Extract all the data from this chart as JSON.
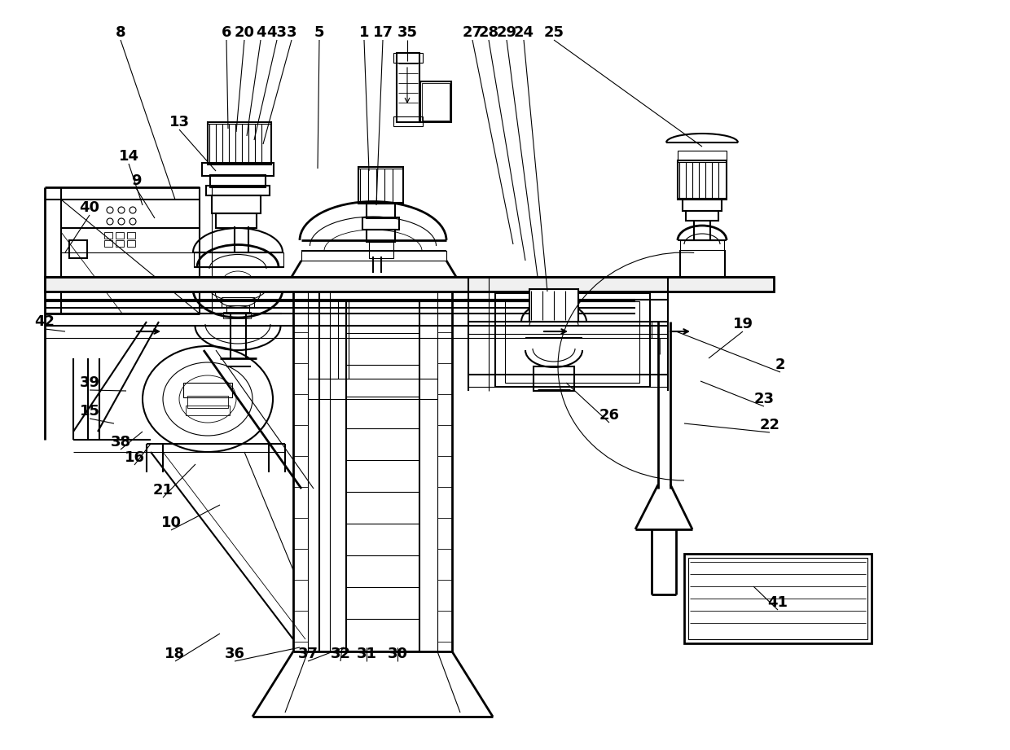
{
  "bg_color": "#ffffff",
  "figsize": [
    12.4,
    9.21
  ],
  "dpi": 100,
  "lw_thick": 2.0,
  "lw_main": 1.5,
  "lw_thin": 0.8,
  "lw_vt": 0.6,
  "label_fs": 13
}
